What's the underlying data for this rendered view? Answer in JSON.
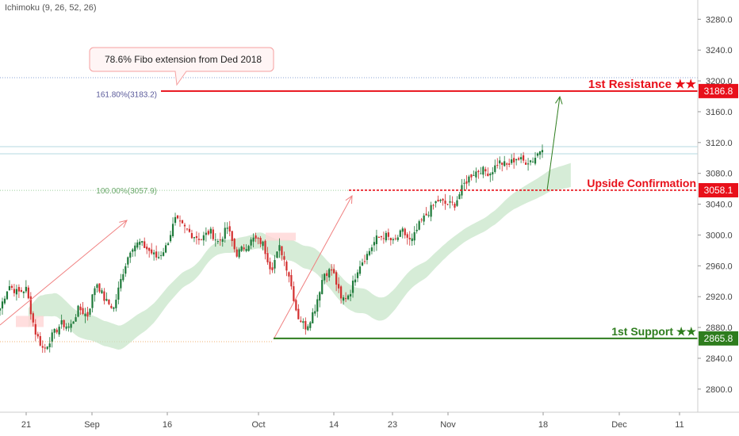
{
  "indicator": "Ichimoku (9, 26, 52, 26)",
  "colors": {
    "up": "#1e7a3a",
    "down": "#d32f2f",
    "resistance": "#e8101a",
    "support": "#2e7d1e",
    "trend_arrow": "#f08080",
    "proj_arrow": "#2e7d1e",
    "cloud": "#c8e6c9",
    "cloud_red": "#ffd6d6",
    "fib": "#5a5a9a"
  },
  "callout": {
    "text": "78.6% Fibo extension from Ded 2018"
  },
  "fib_labels": {
    "fib161": "161.80%(3183.2)",
    "fib100": "100.00%(3057.9)"
  },
  "level_labels": {
    "resistance": "1st Resistance ★★",
    "confirmation": "Upside Confirmation",
    "support": "1st Support ★★"
  },
  "price_tags": {
    "resistance": "3186.8",
    "confirmation": "3058.1",
    "support": "2865.8"
  },
  "chart_data": {
    "type": "candlestick",
    "x_tick_labels": [
      "21",
      "Sep",
      "16",
      "Oct",
      "14",
      "23",
      "Nov",
      "18",
      "Dec",
      "11"
    ],
    "y_ticks": [
      "3280.0",
      "3240.0",
      "3200.0",
      "3160.0",
      "3120.0",
      "3080.0",
      "3040.0",
      "3000.0",
      "2960.0",
      "2920.0",
      "2880.0",
      "2840.0",
      "2800.0"
    ],
    "ylim": [
      2770,
      3305
    ],
    "levels": {
      "resistance": 3186.8,
      "confirmation": 3058.1,
      "support": 2865.8,
      "fib_161": 3183.2,
      "fib_100": 3057.9
    },
    "close_path": [
      2905,
      2935,
      2925,
      2930,
      2875,
      2850,
      2870,
      2885,
      2880,
      2905,
      2895,
      2940,
      2915,
      2905,
      2950,
      2985,
      2990,
      2980,
      2970,
      2985,
      3020,
      3010,
      3000,
      2995,
      3005,
      2990,
      3010,
      2975,
      2985,
      2995,
      2990,
      2955,
      2985,
      2950,
      2895,
      2880,
      2905,
      2950,
      2955,
      2915,
      2925,
      2960,
      2975,
      2995,
      3000,
      2990,
      3005,
      2990,
      3015,
      3030,
      3045,
      3040,
      3040,
      3065,
      3080,
      3085,
      3080,
      3095,
      3090,
      3100,
      3095,
      3098,
      3115
    ]
  }
}
